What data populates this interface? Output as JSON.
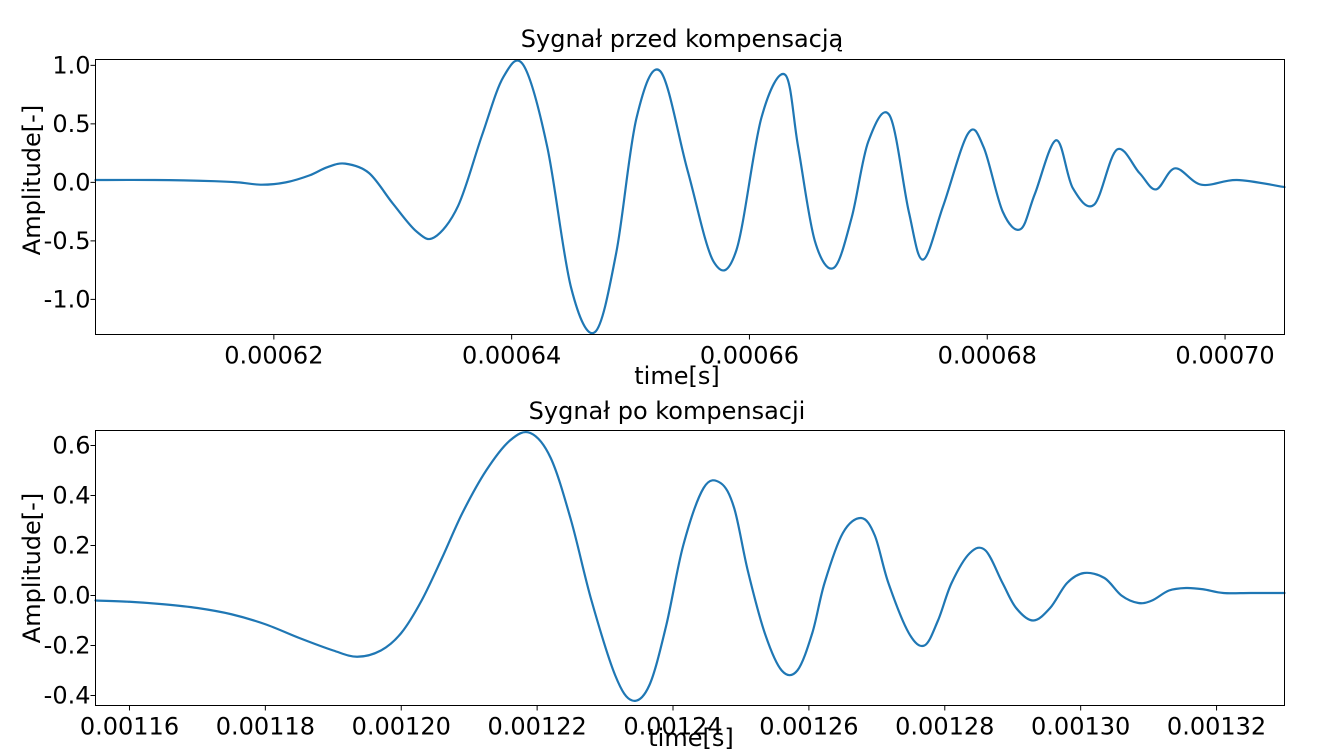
{
  "colors": {
    "series": "#1f77b4"
  },
  "chart_data": [
    {
      "type": "line",
      "title": "Sygnał przed kompensacją",
      "xlabel": "time[s]",
      "ylabel": "Amplitude[-]",
      "xlim": [
        0.000605,
        0.000705
      ],
      "ylim": [
        -1.3,
        1.05
      ],
      "grid": false,
      "legend": "none",
      "xticks": [
        0.00062,
        0.00064,
        0.00066,
        0.00068,
        0.0007
      ],
      "xtick_labels": [
        "0.00062",
        "0.00064",
        "0.00066",
        "0.00068",
        "0.00070"
      ],
      "yticks": [
        1.0,
        0.5,
        0.0,
        -0.5,
        -1.0
      ],
      "ytick_labels": [
        "1.0",
        "0.5",
        "0.0",
        "-0.5",
        "-1.0"
      ],
      "series": [
        {
          "x": [
            0.000605,
            0.00061,
            0.000615,
            0.000617,
            0.000619,
            0.000621,
            0.000623,
            0.0006245,
            0.000626,
            0.000628,
            0.00063,
            0.000632,
            0.0006335,
            0.0006355,
            0.0006375,
            0.0006393,
            0.000641,
            0.000643,
            0.000645,
            0.000647,
            0.0006488,
            0.0006505,
            0.0006525,
            0.0006548,
            0.000657,
            0.0006589,
            0.000661,
            0.000663,
            0.0006641,
            0.0006655,
            0.0006671,
            0.0006686,
            0.00067,
            0.0006718,
            0.0006734,
            0.0006746,
            0.0006763,
            0.0006784,
            0.0006797,
            0.0006813,
            0.0006828,
            0.000684,
            0.0006858,
            0.0006872,
            0.000689,
            0.0006909,
            0.0006928,
            0.0006942,
            0.0006958,
            0.000698,
            0.000701,
            0.000705
          ],
          "y": [
            0.02,
            0.02,
            0.01,
            0.0,
            -0.02,
            0.0,
            0.06,
            0.13,
            0.16,
            0.08,
            -0.18,
            -0.42,
            -0.47,
            -0.2,
            0.4,
            0.9,
            1.0,
            0.3,
            -0.9,
            -1.28,
            -0.6,
            0.55,
            0.95,
            0.1,
            -0.68,
            -0.58,
            0.55,
            0.92,
            0.3,
            -0.5,
            -0.73,
            -0.3,
            0.35,
            0.57,
            -0.25,
            -0.66,
            -0.2,
            0.42,
            0.3,
            -0.25,
            -0.4,
            -0.1,
            0.36,
            -0.05,
            -0.19,
            0.28,
            0.08,
            -0.06,
            0.12,
            -0.02,
            0.02,
            -0.04
          ]
        }
      ]
    },
    {
      "type": "line",
      "title": "Sygnał po kompensacji",
      "xlabel": "time[s]",
      "ylabel": "Amplitude[-]",
      "xlim": [
        0.001155,
        0.00133
      ],
      "ylim": [
        -0.44,
        0.66
      ],
      "grid": false,
      "legend": "none",
      "xticks": [
        0.00116,
        0.00118,
        0.0012,
        0.00122,
        0.00124,
        0.00126,
        0.00128,
        0.0013,
        0.00132
      ],
      "xtick_labels": [
        "0.00116",
        "0.00118",
        "0.00120",
        "0.00122",
        "0.00124",
        "0.00126",
        "0.00128",
        "0.00130",
        "0.00132"
      ],
      "yticks": [
        0.6,
        0.4,
        0.2,
        0.0,
        -0.2,
        -0.4
      ],
      "ytick_labels": [
        "0.6",
        "0.4",
        "0.2",
        "0.0",
        "-0.2",
        "-0.4"
      ],
      "series": [
        {
          "x": [
            0.001155,
            0.00116,
            0.001165,
            0.00117,
            0.001175,
            0.00118,
            0.001185,
            0.00119,
            0.0011935,
            0.001197,
            0.0012,
            0.001203,
            0.001206,
            0.001209,
            0.0012125,
            0.001216,
            0.001219,
            0.001222,
            0.001225,
            0.001228,
            0.0012315,
            0.001234,
            0.0012365,
            0.001239,
            0.0012415,
            0.0012445,
            0.001247,
            0.001249,
            0.001251,
            0.0012535,
            0.001256,
            0.0012583,
            0.0012605,
            0.0012623,
            0.001265,
            0.0012677,
            0.0012697,
            0.0012717,
            0.0012747,
            0.001277,
            0.001279,
            0.001281,
            0.0012837,
            0.001286,
            0.0012885,
            0.0012905,
            0.001293,
            0.0012955,
            0.001298,
            0.0013005,
            0.0013035,
            0.001306,
            0.0013085,
            0.0013105,
            0.001313,
            0.0013155,
            0.001318,
            0.001321,
            0.001325,
            0.00133
          ],
          "y": [
            -0.02,
            -0.025,
            -0.035,
            -0.05,
            -0.075,
            -0.115,
            -0.17,
            -0.22,
            -0.245,
            -0.22,
            -0.15,
            -0.02,
            0.15,
            0.33,
            0.5,
            0.62,
            0.65,
            0.55,
            0.3,
            -0.02,
            -0.32,
            -0.42,
            -0.36,
            -0.12,
            0.2,
            0.43,
            0.45,
            0.35,
            0.1,
            -0.15,
            -0.3,
            -0.3,
            -0.15,
            0.05,
            0.25,
            0.31,
            0.24,
            0.05,
            -0.15,
            -0.2,
            -0.1,
            0.05,
            0.17,
            0.18,
            0.05,
            -0.05,
            -0.1,
            -0.05,
            0.05,
            0.09,
            0.07,
            0.0,
            -0.03,
            -0.02,
            0.02,
            0.03,
            0.025,
            0.01,
            0.01,
            0.01
          ]
        }
      ]
    }
  ]
}
